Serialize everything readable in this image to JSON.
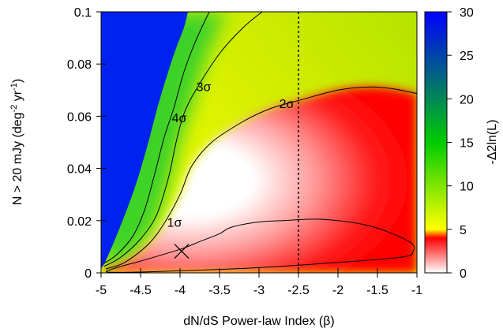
{
  "chart_data": {
    "type": "heatmap",
    "xlabel": "dN/dS Power-law Index (β)",
    "ylabel": "N > 20 mJy (deg⁻² yr⁻¹)",
    "ylabel_parts": {
      "main": "N > 20 mJy (deg",
      "sup1": "-2",
      "mid": " yr",
      "sup2": "-1",
      "end": ")"
    },
    "colorbar_label": "-Δ2ln(L)",
    "xlim": [
      -5,
      -1
    ],
    "ylim": [
      0,
      0.1
    ],
    "zlim": [
      0,
      30
    ],
    "x_ticks": [
      -5,
      -4.5,
      -4,
      -3.5,
      -3,
      -2.5,
      -2,
      -1.5,
      -1
    ],
    "x_tick_labels": [
      "-5",
      "-4.5",
      "-4",
      "-3.5",
      "-3",
      "-2.5",
      "-2",
      "-1.5",
      "-1"
    ],
    "y_ticks": [
      0,
      0.02,
      0.04,
      0.06,
      0.08,
      0.1
    ],
    "y_tick_labels": [
      "0",
      "0.02",
      "0.04",
      "0.06",
      "0.08",
      "0.1"
    ],
    "colorbar_ticks": [
      0,
      5,
      10,
      15,
      20,
      25,
      30
    ],
    "colorbar_tick_labels": [
      "0",
      "5",
      "10",
      "15",
      "20",
      "25",
      "30"
    ],
    "colorscale": [
      {
        "value": 0,
        "color": "#ffffff"
      },
      {
        "value": 4,
        "color": "#ff0000"
      },
      {
        "value": 5,
        "color": "#ffff00"
      },
      {
        "value": 15,
        "color": "#00cc00"
      },
      {
        "value": 30,
        "color": "#0000ff"
      }
    ],
    "best_fit": {
      "x": -3.98,
      "y": 0.0083,
      "marker": "×"
    },
    "vline": {
      "x": -2.5,
      "style": "dashed"
    },
    "contours": [
      {
        "label": "1σ",
        "level": 2.3,
        "label_at": {
          "x": -4.07,
          "y": 0.0195
        },
        "points": [
          [
            -2.7,
            0.02
          ],
          [
            -2.2,
            0.0205
          ],
          [
            -1.6,
            0.018
          ],
          [
            -1.1,
            0.012
          ],
          [
            -1.05,
            0.008
          ],
          [
            -1.2,
            0.006
          ],
          [
            -2.0,
            0.004
          ],
          [
            -3.0,
            0.002
          ],
          [
            -4.0,
            0.0008
          ],
          [
            -4.88,
            0.0002
          ],
          [
            -4.8,
            0.002
          ],
          [
            -4.5,
            0.0045
          ],
          [
            -4.0,
            0.009
          ],
          [
            -3.75,
            0.012
          ],
          [
            -3.5,
            0.015
          ],
          [
            -3.35,
            0.0175
          ],
          [
            -3.0,
            0.0195
          ],
          [
            -2.7,
            0.02
          ]
        ]
      },
      {
        "label": "2σ",
        "level": 6.18,
        "label_at": {
          "x": -2.65,
          "y": 0.065
        },
        "points": [
          [
            -4.94,
            0.0015
          ],
          [
            -4.7,
            0.004
          ],
          [
            -4.4,
            0.011
          ],
          [
            -4.2,
            0.019
          ],
          [
            -4.0,
            0.03
          ],
          [
            -3.85,
            0.041
          ],
          [
            -3.6,
            0.05
          ],
          [
            -3.2,
            0.058
          ],
          [
            -2.85,
            0.063
          ],
          [
            -2.5,
            0.066
          ],
          [
            -2.0,
            0.07
          ],
          [
            -1.6,
            0.0712
          ],
          [
            -1.3,
            0.0705
          ],
          [
            -1.0,
            0.0687
          ]
        ]
      },
      {
        "label": "3σ",
        "level": 11.83,
        "label_at": {
          "x": -3.7,
          "y": 0.0715
        },
        "points": [
          [
            -4.96,
            0.0025
          ],
          [
            -4.75,
            0.006
          ],
          [
            -4.5,
            0.013
          ],
          [
            -4.3,
            0.022
          ],
          [
            -4.15,
            0.036
          ],
          [
            -4.05,
            0.05
          ],
          [
            -3.95,
            0.061
          ],
          [
            -3.8,
            0.07
          ],
          [
            -3.5,
            0.084
          ],
          [
            -3.2,
            0.094
          ],
          [
            -2.96,
            0.1
          ]
        ]
      },
      {
        "label": "4σ",
        "level": 19.33,
        "label_at": {
          "x": -4.01,
          "y": 0.0595
        },
        "points": [
          [
            -4.97,
            0.0035
          ],
          [
            -4.8,
            0.007
          ],
          [
            -4.6,
            0.014
          ],
          [
            -4.45,
            0.024
          ],
          [
            -4.32,
            0.038
          ],
          [
            -4.2,
            0.052
          ],
          [
            -4.08,
            0.063
          ],
          [
            -3.95,
            0.077
          ],
          [
            -3.8,
            0.089
          ],
          [
            -3.63,
            0.1
          ]
        ]
      }
    ],
    "boundary_blue": [
      [
        -3.9,
        0.1
      ],
      [
        -3.95,
        0.094
      ],
      [
        -4.05,
        0.086
      ],
      [
        -4.15,
        0.077
      ],
      [
        -4.28,
        0.064
      ],
      [
        -4.42,
        0.048
      ],
      [
        -4.58,
        0.032
      ],
      [
        -4.78,
        0.016
      ],
      [
        -4.95,
        0.004
      ],
      [
        -5.0,
        0.002
      ]
    ]
  }
}
